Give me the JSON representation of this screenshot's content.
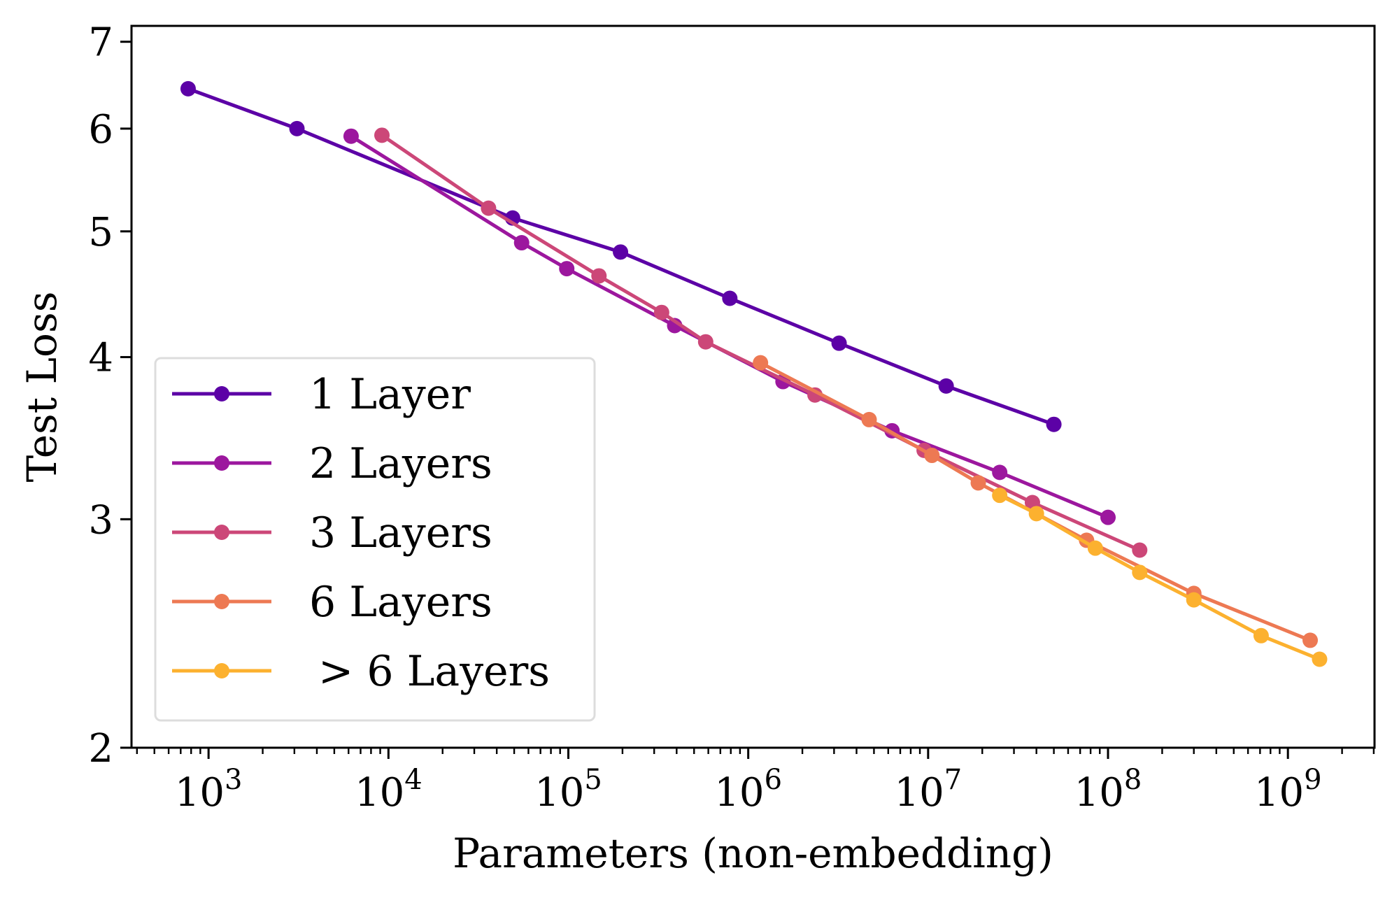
{
  "chart_data": {
    "type": "line",
    "title": "",
    "xlabel": "Parameters (non-embedding)",
    "ylabel": "Test Loss",
    "xscale": "log",
    "yscale": "log",
    "xlim": [
      373,
      3030000000.0
    ],
    "ylim": [
      2,
      7.2
    ],
    "x_ticks": [
      {
        "value": 1000.0,
        "base": "10",
        "exp": "3"
      },
      {
        "value": 10000.0,
        "base": "10",
        "exp": "4"
      },
      {
        "value": 100000.0,
        "base": "10",
        "exp": "5"
      },
      {
        "value": 1000000.0,
        "base": "10",
        "exp": "6"
      },
      {
        "value": 10000000.0,
        "base": "10",
        "exp": "7"
      },
      {
        "value": 100000000.0,
        "base": "10",
        "exp": "8"
      },
      {
        "value": 1000000000.0,
        "base": "10",
        "exp": "9"
      }
    ],
    "y_ticks": [
      {
        "value": 2,
        "label": "2"
      },
      {
        "value": 3,
        "label": "3"
      },
      {
        "value": 4,
        "label": "4"
      },
      {
        "value": 5,
        "label": "5"
      },
      {
        "value": 6,
        "label": "6"
      },
      {
        "value": 7,
        "label": "7"
      }
    ],
    "grid": false,
    "legend_position": "lower-left",
    "series": [
      {
        "name": "1 Layer",
        "color": "#5c01a6",
        "x": [
          770,
          3100,
          49000,
          195000,
          790000,
          3200000,
          12600000,
          50000000
        ],
        "y": [
          6.44,
          6.0,
          5.12,
          4.82,
          4.44,
          4.1,
          3.8,
          3.55
        ]
      },
      {
        "name": "2 Layers",
        "color": "#9c179e",
        "x": [
          6200,
          55000,
          98000,
          390000,
          1560000,
          6300000,
          25000000,
          100000000
        ],
        "y": [
          5.92,
          4.9,
          4.68,
          4.23,
          3.83,
          3.51,
          3.26,
          3.01
        ]
      },
      {
        "name": "3 Layers",
        "color": "#cc4778",
        "x": [
          9200,
          36000,
          148000,
          330000,
          580000,
          2350000,
          9500000,
          38000000,
          150000000
        ],
        "y": [
          5.93,
          5.21,
          4.62,
          4.33,
          4.11,
          3.74,
          3.39,
          3.09,
          2.84
        ]
      },
      {
        "name": "6 Layers",
        "color": "#ed7953",
        "x": [
          1170000,
          4700000,
          10500000,
          19000000,
          76000000,
          300000000,
          1330000000
        ],
        "y": [
          3.96,
          3.58,
          3.36,
          3.2,
          2.89,
          2.63,
          2.42
        ]
      },
      {
        "name": "> 6 Layers",
        "color": "#fcb12f",
        "x": [
          25000000,
          40000000,
          85000000,
          150000000,
          300000000,
          710000000,
          1500000000
        ],
        "y": [
          3.13,
          3.03,
          2.85,
          2.73,
          2.6,
          2.44,
          2.34
        ]
      }
    ]
  }
}
